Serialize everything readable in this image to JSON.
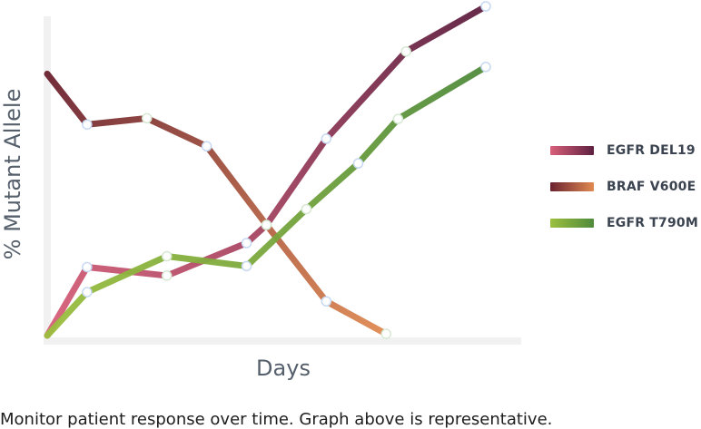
{
  "chart_data": {
    "type": "line",
    "xlabel": "Days",
    "ylabel": "% Mutant Allele",
    "xlim": [
      0,
      11
    ],
    "ylim": [
      0,
      100
    ],
    "grid": false,
    "legend_position": "right",
    "series": [
      {
        "name": "EGFR DEL19",
        "colors": [
          "#d9607a",
          "#5e2040"
        ],
        "points": [
          [
            0,
            0
          ],
          [
            1,
            20.8
          ],
          [
            3,
            18.2
          ],
          [
            5,
            28.1
          ],
          [
            5.5,
            33.6
          ],
          [
            7,
            59.8
          ],
          [
            9,
            86.3
          ],
          [
            11,
            100
          ]
        ]
      },
      {
        "name": "BRAF V600E",
        "colors": [
          "#6b2230",
          "#e08a52"
        ],
        "points": [
          [
            0,
            79.5
          ],
          [
            1,
            64.1
          ],
          [
            2.5,
            66.0
          ],
          [
            4,
            57.5
          ],
          [
            5.5,
            33.6
          ],
          [
            7,
            10.4
          ],
          [
            8.5,
            0.5
          ]
        ]
      },
      {
        "name": "EGFR T790M",
        "colors": [
          "#9cbf3e",
          "#4f8a3c"
        ],
        "points": [
          [
            0,
            0
          ],
          [
            1,
            13.2
          ],
          [
            3,
            24.1
          ],
          [
            5,
            21.1
          ],
          [
            6.5,
            38.4
          ],
          [
            7.8,
            52.3
          ],
          [
            8.8,
            65.8
          ],
          [
            11,
            81.6
          ]
        ]
      }
    ]
  },
  "caption": "Monitor patient response over time. Graph above is representative."
}
